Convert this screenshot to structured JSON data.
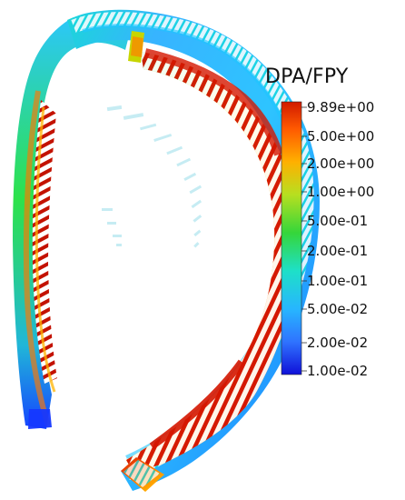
{
  "legend": {
    "title": "DPA/FPY",
    "scale": "log",
    "range": [
      0.01,
      9.89
    ],
    "ticks": [
      {
        "label": "9.89e+00"
      },
      {
        "label": "5.00e+00"
      },
      {
        "label": "2.00e+00"
      },
      {
        "label": "1.00e+00"
      },
      {
        "label": "5.00e-01"
      },
      {
        "label": "2.00e-01"
      },
      {
        "label": "1.00e-01"
      },
      {
        "label": "5.00e-02"
      },
      {
        "label": "2.00e-02"
      },
      {
        "label": "1.00e-02"
      }
    ],
    "colormap": [
      "#1010d8",
      "#2aa9ff",
      "#1ee0c8",
      "#33d633",
      "#c9e11a",
      "#ff8a00",
      "#d11a00"
    ]
  }
}
